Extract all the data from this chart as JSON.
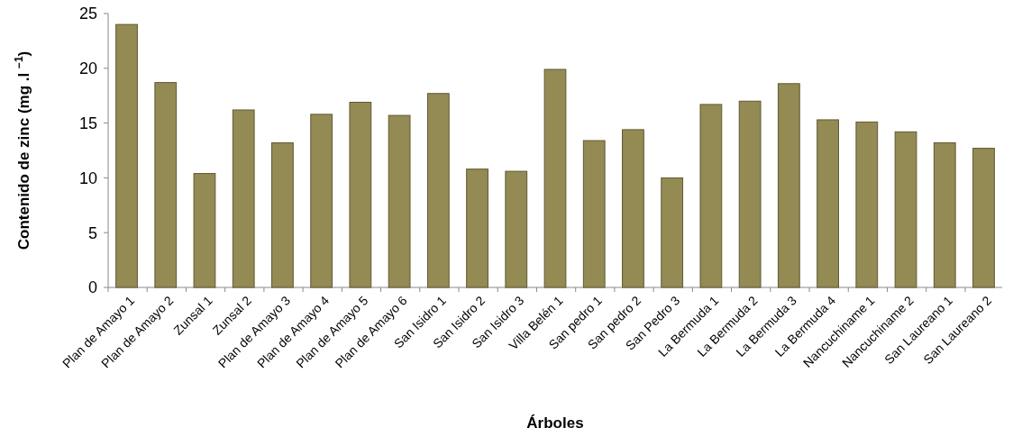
{
  "chart_data": {
    "type": "bar",
    "xlabel": "Árboles",
    "ylabel": "Contenido de zinc (mg .l $^{−1}$)",
    "categories": [
      "Plan de Amayo 1",
      "Plan de Amayo 2",
      "Zunsal 1",
      "Zunsal 2",
      "Plan de Amayo 3",
      "Plan de Amayo 4",
      "Plan de Amayo 5",
      "Plan de Amayo 6",
      "San Isidro 1",
      "San Isidro 2",
      "San Isidro 3",
      "Villa Belén 1",
      "San pedro 1",
      "San pedro 2",
      "San Pedro 3",
      "La Bermuda 1",
      "La Bermuda 2",
      "La Bermuda 3",
      "La Bermuda 4",
      "Nancuchiname 1",
      "Nancuchiname 2",
      "San Laureano 1",
      "San Laureano 2"
    ],
    "values": [
      24.0,
      18.7,
      10.4,
      16.2,
      13.2,
      15.8,
      16.9,
      15.7,
      17.7,
      10.8,
      10.6,
      19.9,
      13.4,
      14.4,
      10.0,
      16.7,
      17.0,
      18.6,
      15.3,
      15.1,
      14.2,
      13.2,
      12.7
    ],
    "color": "#948a54",
    "ylim": [
      0,
      25
    ],
    "yticks": [
      0,
      5,
      10,
      15,
      20,
      25
    ]
  }
}
